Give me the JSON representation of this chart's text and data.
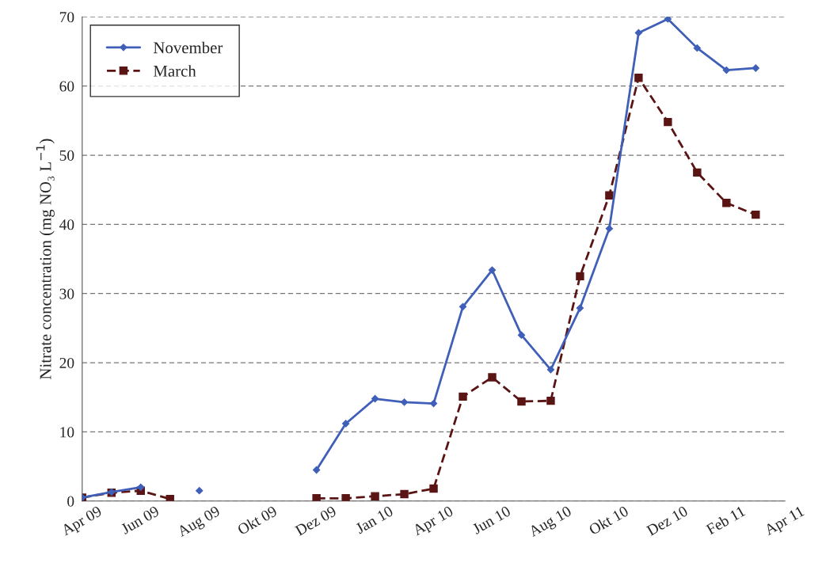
{
  "chart_data": {
    "type": "line",
    "ylabel": "Nitrate concentration (mg NO₃ L$^{−1}$)",
    "categories": [
      "Apr 09",
      null,
      "Jun 09",
      null,
      "Aug 09",
      null,
      "Okt 09",
      null,
      "Dez 09",
      null,
      "Jan 10",
      null,
      "Apr 10",
      null,
      "Jun 10",
      null,
      "Aug 10",
      null,
      "Okt 10",
      null,
      "Dez 10",
      null,
      "Feb 11",
      null,
      "Apr 11"
    ],
    "series": [
      {
        "name": "November",
        "color": "#3f5fb8",
        "marker": "diamond",
        "line_style": "solid",
        "values": [
          0.5,
          1.3,
          2.0,
          null,
          1.5,
          null,
          null,
          null,
          4.5,
          11.2,
          14.8,
          14.3,
          14.1,
          28.1,
          33.4,
          24.0,
          19.0,
          27.9,
          39.4,
          67.7,
          69.7,
          65.5,
          62.3,
          62.6,
          null
        ]
      },
      {
        "name": "March",
        "color": "#5a1414",
        "marker": "square",
        "line_style": "dashed",
        "values": [
          0.5,
          1.2,
          1.5,
          0.3,
          null,
          null,
          null,
          null,
          0.4,
          0.4,
          0.7,
          1.0,
          1.8,
          15.1,
          17.9,
          14.4,
          14.5,
          32.5,
          44.2,
          61.2,
          54.8,
          47.5,
          43.1,
          41.4,
          null
        ]
      }
    ],
    "ylim": [
      0,
      70
    ],
    "yticks": [
      0,
      10,
      20,
      30,
      40,
      50,
      60,
      70
    ],
    "grid": "y",
    "legend": "top left"
  }
}
